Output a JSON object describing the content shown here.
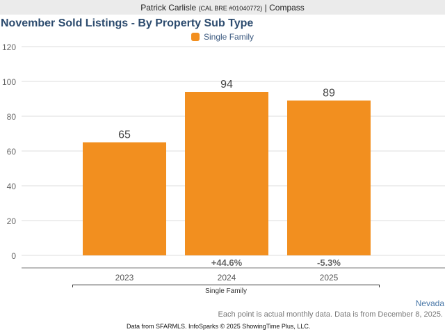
{
  "header": {
    "agent_name": "Patrick Carlisle",
    "license": "(CAL BRE #01040772)",
    "separator": "|",
    "brokerage": "Compass"
  },
  "chart_data": {
    "type": "bar",
    "title": "November Sold Listings - By Property Sub Type",
    "legend": [
      {
        "name": "Single Family",
        "color": "#f28f1f"
      }
    ],
    "legend_position": "top-center",
    "categories": [
      "2023",
      "2024",
      "2025"
    ],
    "group_label": "Single Family",
    "series": [
      {
        "name": "Single Family",
        "values": [
          65,
          94,
          89
        ],
        "color": "#f28f1f"
      }
    ],
    "data_labels": [
      "65",
      "94",
      "89"
    ],
    "change_labels": [
      "",
      "+44.6%",
      "-5.3%"
    ],
    "yticks": [
      0,
      20,
      40,
      60,
      80,
      100,
      120
    ],
    "ylim": [
      0,
      120
    ],
    "xlabel": "",
    "ylabel": "",
    "grid": true
  },
  "footer": {
    "region": "Nevada",
    "note": "Each point is actual monthly data. Data is from December 8, 2025.",
    "source": "Data from SFARMLS. InfoSparks © 2025 ShowingTime Plus, LLC."
  }
}
